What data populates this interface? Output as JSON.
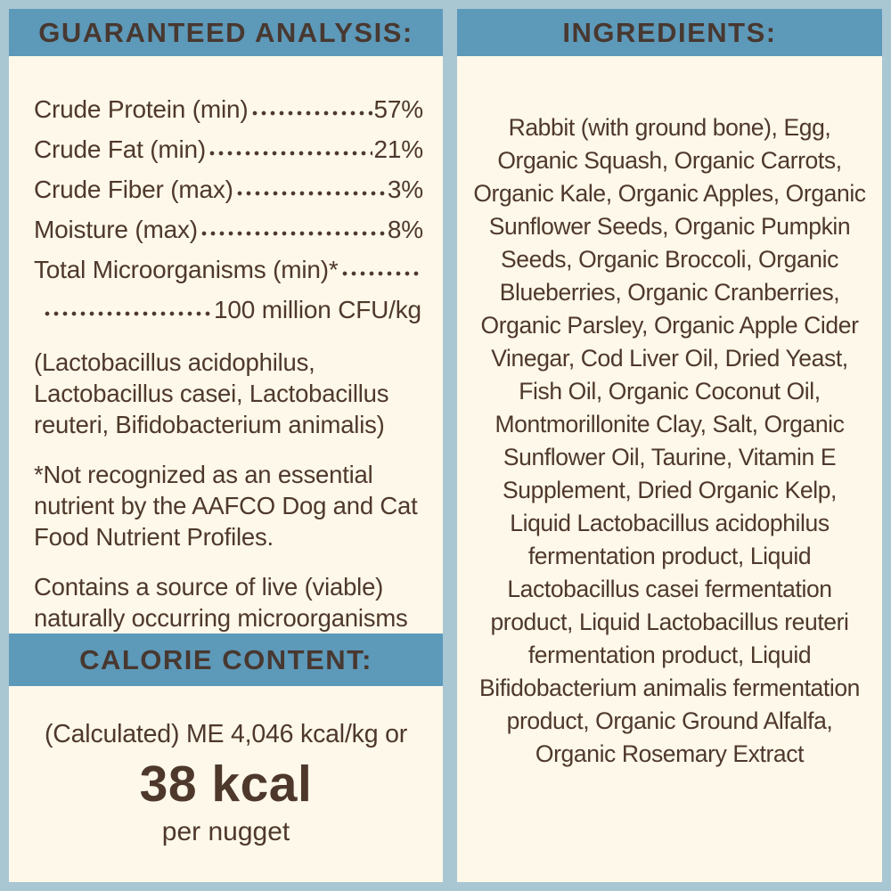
{
  "colors": {
    "page_background": "#a9c6d3",
    "header_bar": "#5d99b9",
    "panel_background": "#fdf8e9",
    "text_brown": "#4e382c"
  },
  "guaranteed_analysis": {
    "title": "GUARANTEED ANALYSIS:",
    "rows": [
      {
        "label": "Crude Protein (min)",
        "value": "57%"
      },
      {
        "label": "Crude Fat (min)",
        "value": "21%"
      },
      {
        "label": "Crude Fiber (max)",
        "value": "3%"
      },
      {
        "label": "Moisture (max)",
        "value": "8%"
      }
    ],
    "microorganisms_label": "Total Microorganisms (min)*",
    "microorganisms_value": "100 million CFU/kg",
    "microorganisms_species": "(Lactobacillus acidophilus, Lactobacillus casei, Lactobacillus reuteri, Bifidobacterium animalis)",
    "footnote": "*Not recognized as an essential nutrient by the AAFCO Dog and Cat Food Nutrient Profiles.",
    "viable_note": "Contains a source of live (viable) naturally occurring microorganisms"
  },
  "calorie_content": {
    "title": "CALORIE CONTENT:",
    "line1": "(Calculated) ME 4,046 kcal/kg or",
    "value": "38 kcal",
    "unit": "per nugget"
  },
  "ingredients": {
    "title": "INGREDIENTS:",
    "text": "Rabbit (with ground bone), Egg, Organic Squash, Organic Carrots, Organic Kale, Organic Apples, Organic Sunflower Seeds, Organic Pumpkin Seeds, Organic Broccoli, Organic Blueberries, Organic Cranberries, Organic Parsley, Organic Apple Cider Vinegar, Cod Liver Oil, Dried Yeast, Fish Oil, Organic Coconut Oil, Montmorillonite Clay, Salt, Organic Sunflower Oil, Taurine, Vitamin E Supplement, Dried Organic Kelp, Liquid Lactobacillus acidophilus fermentation product, Liquid Lactobacillus casei fermentation product, Liquid Lactobacillus reuteri fermentation product, Liquid Bifidobacterium animalis fermentation product, Organic Ground Alfalfa, Organic Rosemary Extract"
  }
}
